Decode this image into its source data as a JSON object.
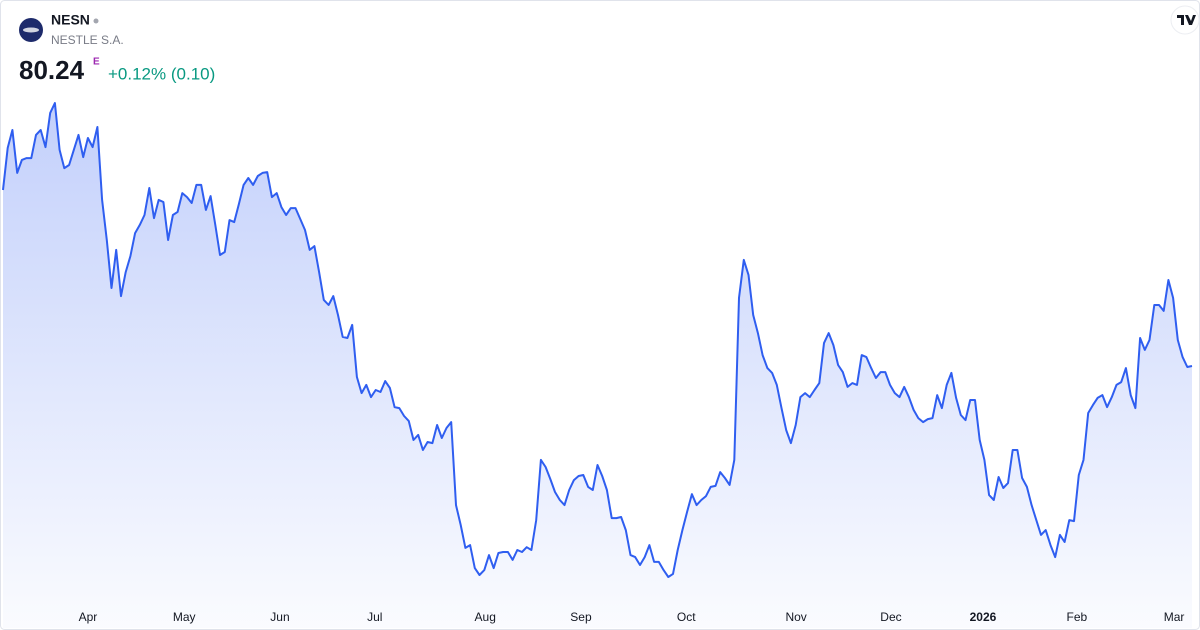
{
  "quote": {
    "symbol": "NESN",
    "name": "NESTLE S.A.",
    "price": "80.24",
    "badge": "E",
    "change": "+0.12% (0.10)"
  },
  "chart_data": {
    "type": "area",
    "color": "#2f5ef0",
    "values": [
      87.14,
      88.79,
      89.49,
      87.81,
      88.32,
      88.39,
      88.39,
      89.3,
      89.49,
      88.82,
      90.16,
      90.55,
      88.71,
      88.0,
      88.12,
      88.71,
      89.3,
      88.43,
      89.18,
      88.82,
      89.61,
      86.75,
      85.18,
      83.3,
      84.79,
      82.98,
      83.92,
      84.55,
      85.45,
      85.77,
      86.16,
      87.22,
      86.04,
      86.75,
      86.67,
      85.18,
      86.16,
      86.28,
      87.02,
      86.86,
      86.63,
      87.34,
      87.34,
      86.36,
      86.9,
      85.77,
      84.59,
      84.71,
      85.96,
      85.88,
      86.59,
      87.34,
      87.61,
      87.34,
      87.69,
      87.81,
      87.84,
      86.86,
      87.02,
      86.47,
      86.16,
      86.43,
      86.43,
      86.0,
      85.57,
      84.79,
      84.94,
      83.92,
      82.83,
      82.63,
      82.98,
      82.24,
      81.38,
      81.34,
      81.85,
      79.81,
      79.18,
      79.5,
      79.02,
      79.3,
      79.22,
      79.65,
      79.38,
      78.63,
      78.59,
      78.28,
      78.08,
      77.34,
      77.54,
      76.95,
      77.26,
      77.22,
      77.93,
      77.42,
      77.81,
      78.04,
      74.79,
      74.01,
      73.11,
      73.22,
      72.32,
      72.05,
      72.24,
      72.83,
      72.32,
      72.91,
      72.95,
      72.95,
      72.64,
      73.03,
      72.95,
      73.14,
      73.03,
      74.2,
      76.56,
      76.28,
      75.81,
      75.3,
      74.99,
      74.79,
      75.38,
      75.77,
      75.93,
      75.97,
      75.5,
      75.38,
      76.36,
      75.93,
      75.38,
      74.28,
      74.28,
      74.32,
      73.81,
      72.83,
      72.75,
      72.44,
      72.75,
      73.22,
      72.56,
      72.56,
      72.24,
      71.97,
      72.09,
      73.03,
      73.81,
      74.52,
      75.22,
      74.79,
      74.99,
      75.14,
      75.5,
      75.54,
      76.08,
      75.85,
      75.58,
      76.56,
      82.91,
      84.4,
      83.81,
      82.24,
      81.53,
      80.67,
      80.16,
      79.97,
      79.5,
      78.59,
      77.73,
      77.22,
      77.93,
      79.02,
      79.18,
      79.02,
      79.3,
      79.57,
      81.14,
      81.53,
      81.06,
      80.28,
      80.0,
      79.42,
      79.57,
      79.5,
      80.67,
      80.59,
      80.16,
      79.77,
      80.0,
      80.0,
      79.5,
      79.18,
      79.02,
      79.42,
      79.02,
      78.52,
      78.2,
      78.04,
      78.16,
      78.2,
      79.1,
      78.59,
      79.5,
      79.97,
      78.99,
      78.32,
      78.12,
      78.91,
      78.91,
      77.34,
      76.56,
      75.18,
      74.99,
      75.89,
      75.46,
      75.65,
      76.95,
      76.95,
      75.85,
      75.5,
      74.79,
      74.2,
      73.62,
      73.81,
      73.22,
      72.75,
      73.62,
      73.34,
      74.2,
      74.16,
      75.97,
      76.56,
      78.4,
      78.71,
      78.99,
      79.1,
      78.63,
      79.02,
      79.5,
      79.61,
      80.16,
      79.1,
      78.59,
      81.34,
      80.87,
      81.26,
      82.63,
      82.63,
      82.4,
      83.61,
      82.91,
      81.26,
      80.59,
      80.2,
      80.24
    ],
    "xlim": [
      0,
      252
    ],
    "xticks": [
      {
        "value": 18.0,
        "label": "Apr"
      },
      {
        "value": 38.4,
        "label": "May"
      },
      {
        "value": 58.7,
        "label": "Jun"
      },
      {
        "value": 78.8,
        "label": "Jul"
      },
      {
        "value": 102.2,
        "label": "Aug"
      },
      {
        "value": 122.5,
        "label": "Sep"
      },
      {
        "value": 144.8,
        "label": "Oct"
      },
      {
        "value": 168.1,
        "label": "Nov"
      },
      {
        "value": 188.2,
        "label": "Dec"
      },
      {
        "value": 207.7,
        "label": "2026"
      },
      {
        "value": 227.6,
        "label": "Feb"
      },
      {
        "value": 248.2,
        "label": "Mar"
      }
    ]
  }
}
